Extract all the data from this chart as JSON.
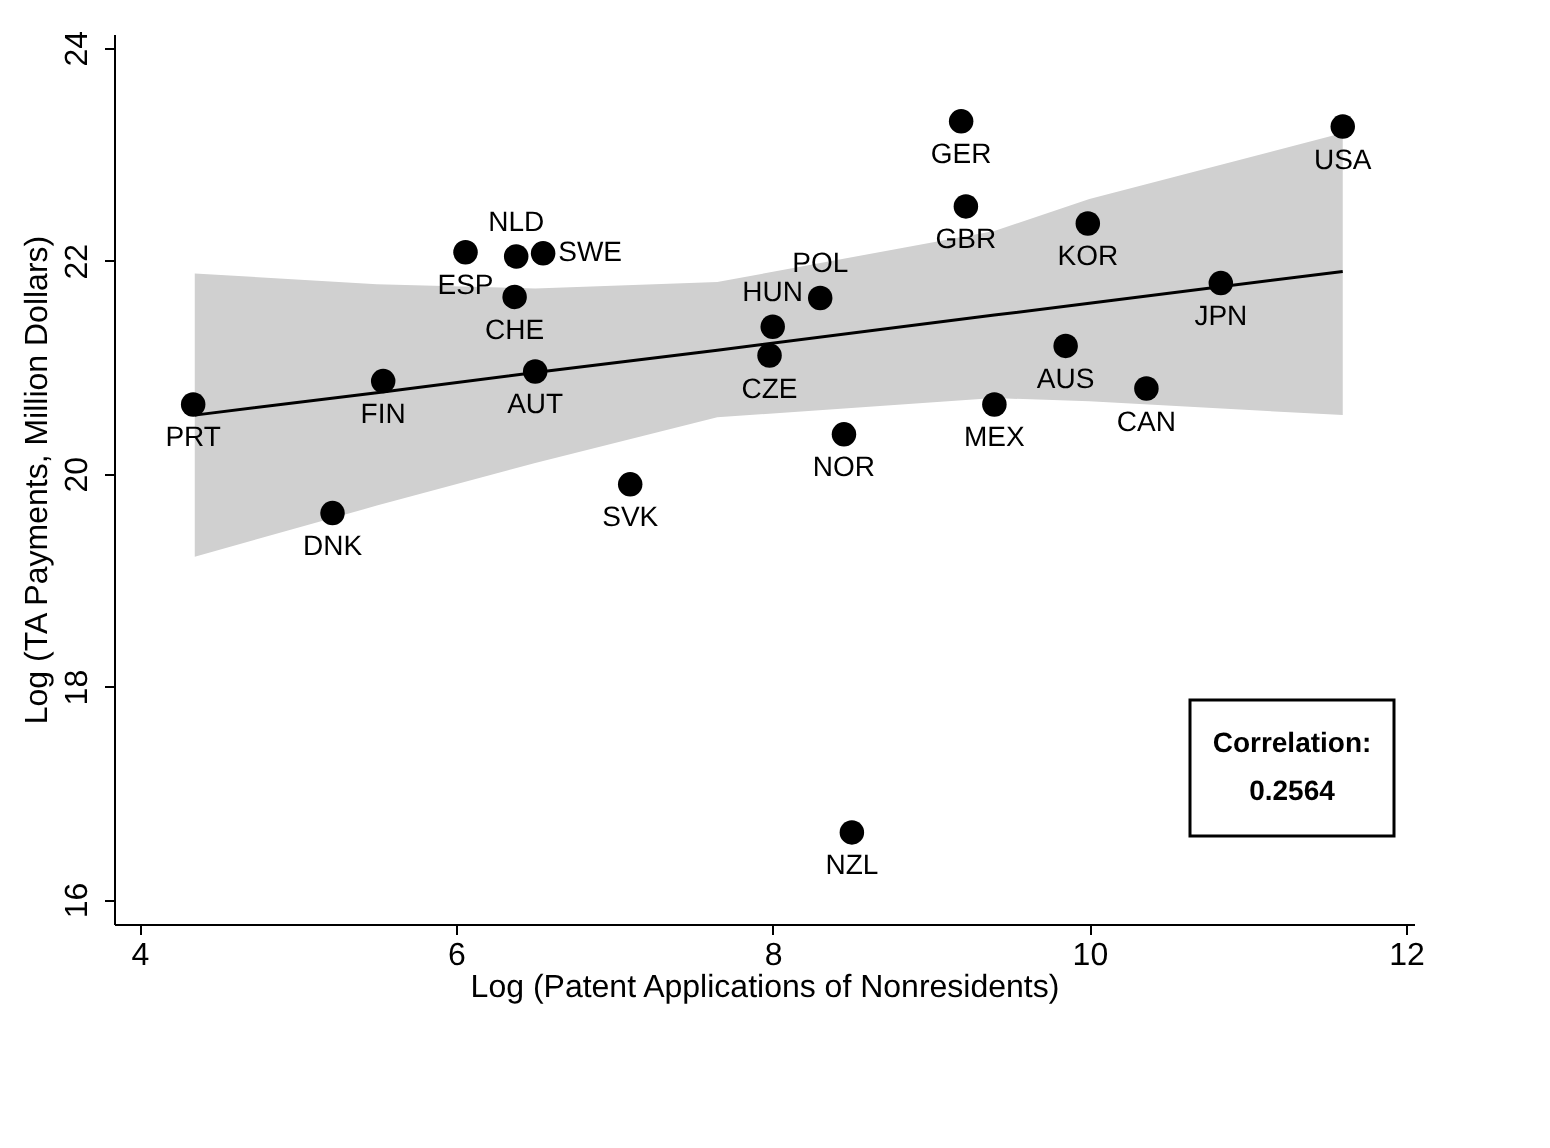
{
  "chart_data": {
    "type": "scatter",
    "xlabel": "Log (Patent Applications of Nonresidents)",
    "ylabel": "Log (TA Payments, Million Dollars)",
    "xlim": [
      3.84,
      12.05
    ],
    "ylim": [
      15.77,
      24.13
    ],
    "xticks": [
      4,
      6,
      8,
      10,
      12
    ],
    "yticks": [
      16,
      18,
      20,
      22,
      24
    ],
    "grid": false,
    "marker": "circle",
    "series": [
      {
        "color": "#000000",
        "x": [
          4.34,
          5.54,
          5.22,
          6.06,
          6.38,
          6.55,
          6.37,
          6.5,
          7.1,
          8.3,
          8.0,
          7.98,
          8.45,
          9.19,
          9.22,
          9.4,
          9.99,
          9.85,
          10.36,
          10.83,
          11.6,
          8.5
        ],
        "values": [
          20.65,
          20.87,
          19.63,
          22.08,
          22.04,
          22.07,
          21.66,
          20.96,
          19.9,
          21.65,
          21.38,
          21.11,
          20.37,
          23.31,
          22.51,
          20.65,
          22.35,
          21.2,
          20.8,
          21.79,
          23.26,
          16.63
        ]
      },
      {
        "type": "line",
        "marker": "none",
        "color": "#000000",
        "x": [
          4.35,
          5.5,
          6.5,
          7.65,
          9.4,
          10.0,
          11.6
        ],
        "values": [
          20.55,
          20.76,
          20.95,
          21.16,
          21.49,
          21.6,
          21.9
        ],
        "lower": [
          19.22,
          19.7,
          20.1,
          20.53,
          20.71,
          20.68,
          20.55
        ],
        "upper": [
          21.88,
          21.78,
          21.74,
          21.8,
          22.28,
          22.58,
          23.2
        ]
      }
    ],
    "annotations": [
      {
        "text": "PRT",
        "x": 4.34,
        "y": 20.65
      },
      {
        "text": "FIN",
        "x": 5.54,
        "y": 20.87
      },
      {
        "text": "DNK",
        "x": 5.22,
        "y": 19.63
      },
      {
        "text": "ESP",
        "x": 6.06,
        "y": 22.08
      },
      {
        "text": "NLD",
        "x": 6.38,
        "y": 22.04
      },
      {
        "text": "SWE",
        "x": 6.55,
        "y": 22.07
      },
      {
        "text": "CHE",
        "x": 6.37,
        "y": 21.66
      },
      {
        "text": "AUT",
        "x": 6.5,
        "y": 20.96
      },
      {
        "text": "SVK",
        "x": 7.1,
        "y": 19.9
      },
      {
        "text": "POL",
        "x": 8.3,
        "y": 21.65
      },
      {
        "text": "HUN",
        "x": 8.0,
        "y": 21.38
      },
      {
        "text": "CZE",
        "x": 7.98,
        "y": 21.11
      },
      {
        "text": "NOR",
        "x": 8.45,
        "y": 20.37
      },
      {
        "text": "GER",
        "x": 9.19,
        "y": 23.31
      },
      {
        "text": "GBR",
        "x": 9.22,
        "y": 22.51
      },
      {
        "text": "MEX",
        "x": 9.4,
        "y": 20.65
      },
      {
        "text": "KOR",
        "x": 9.99,
        "y": 22.35
      },
      {
        "text": "AUS",
        "x": 9.85,
        "y": 21.2
      },
      {
        "text": "CAN",
        "x": 10.36,
        "y": 20.8
      },
      {
        "text": "JPN",
        "x": 10.83,
        "y": 21.79
      },
      {
        "text": "USA",
        "x": 11.6,
        "y": 23.26
      },
      {
        "text": "NZL",
        "x": 8.5,
        "y": 16.63
      },
      "Correlation: 0.2564"
    ]
  }
}
